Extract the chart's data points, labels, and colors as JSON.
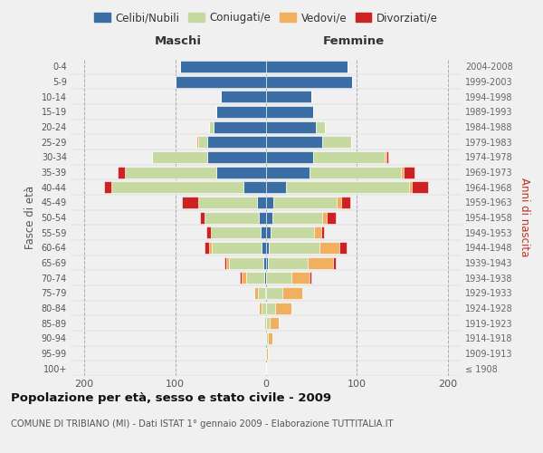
{
  "age_groups": [
    "100+",
    "95-99",
    "90-94",
    "85-89",
    "80-84",
    "75-79",
    "70-74",
    "65-69",
    "60-64",
    "55-59",
    "50-54",
    "45-49",
    "40-44",
    "35-39",
    "30-34",
    "25-29",
    "20-24",
    "15-19",
    "10-14",
    "5-9",
    "0-4"
  ],
  "birth_years": [
    "≤ 1908",
    "1909-1913",
    "1914-1918",
    "1919-1923",
    "1924-1928",
    "1929-1933",
    "1934-1938",
    "1939-1943",
    "1944-1948",
    "1949-1953",
    "1954-1958",
    "1959-1963",
    "1964-1968",
    "1969-1973",
    "1974-1978",
    "1979-1983",
    "1984-1988",
    "1989-1993",
    "1994-1998",
    "1999-2003",
    "2004-2008"
  ],
  "colors": {
    "celibi": "#3a6ea5",
    "coniugati": "#c5d9a0",
    "vedovi": "#f0b060",
    "divorziati": "#cc2222"
  },
  "males": {
    "celibi": [
      0,
      0,
      0,
      0,
      0,
      1,
      2,
      3,
      5,
      6,
      8,
      10,
      25,
      55,
      65,
      65,
      58,
      55,
      50,
      100,
      95
    ],
    "coniugati": [
      0,
      0,
      0,
      2,
      5,
      8,
      20,
      38,
      55,
      55,
      60,
      65,
      145,
      100,
      60,
      10,
      5,
      0,
      0,
      0,
      0
    ],
    "vedovi": [
      0,
      0,
      0,
      1,
      3,
      4,
      5,
      3,
      3,
      0,
      0,
      0,
      0,
      0,
      0,
      2,
      0,
      0,
      0,
      0,
      0
    ],
    "divorziati": [
      0,
      0,
      0,
      0,
      0,
      0,
      2,
      2,
      5,
      5,
      5,
      18,
      8,
      8,
      0,
      0,
      0,
      0,
      0,
      0,
      0
    ]
  },
  "females": {
    "celibi": [
      0,
      0,
      0,
      0,
      0,
      0,
      0,
      2,
      3,
      5,
      7,
      8,
      22,
      48,
      52,
      62,
      55,
      52,
      50,
      95,
      90
    ],
    "coniugati": [
      0,
      0,
      2,
      4,
      10,
      18,
      28,
      44,
      56,
      48,
      55,
      70,
      135,
      100,
      78,
      32,
      10,
      0,
      0,
      0,
      0
    ],
    "vedovi": [
      0,
      2,
      5,
      10,
      18,
      22,
      20,
      28,
      22,
      8,
      5,
      5,
      3,
      3,
      2,
      0,
      0,
      0,
      0,
      0,
      0
    ],
    "divorziati": [
      0,
      0,
      0,
      0,
      0,
      0,
      2,
      3,
      8,
      3,
      10,
      10,
      18,
      12,
      2,
      0,
      0,
      0,
      0,
      0,
      0
    ]
  },
  "xlim": 215,
  "title": "Popolazione per età, sesso e stato civile - 2009",
  "subtitle": "COMUNE DI TRIBIANO (MI) - Dati ISTAT 1° gennaio 2009 - Elaborazione TUTTITALIA.IT",
  "ylabel_left": "Fasce di età",
  "ylabel_right": "Anni di nascita",
  "xlabel_left": "Maschi",
  "xlabel_right": "Femmine",
  "background_color": "#f0f0f0",
  "legend_labels": [
    "Celibi/Nubili",
    "Coniugati/e",
    "Vedovi/e",
    "Divorziati/e"
  ]
}
